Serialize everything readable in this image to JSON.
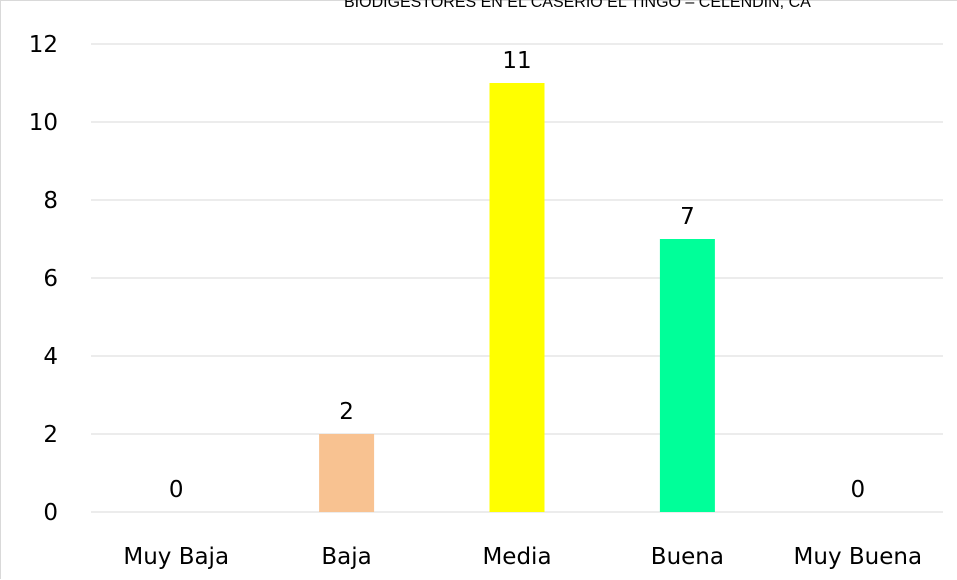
{
  "header": {
    "clipped_title": "BIODIGESTORES EN EL CASERÍO EL TINGO – CELENDÍN, CA"
  },
  "chart_data": {
    "type": "bar",
    "categories": [
      "Muy Baja",
      "Baja",
      "Media",
      "Buena",
      "Muy Buena"
    ],
    "values": [
      0,
      2,
      11,
      7,
      0
    ],
    "data_labels": [
      "0",
      "2",
      "11",
      "7",
      "0"
    ],
    "colors": [
      "#4472c4",
      "#f8c291",
      "#ffff00",
      "#00ff99",
      "#4472c4"
    ],
    "gridline_color": "#d9d9d9",
    "ylim": [
      0,
      12
    ],
    "yticks": [
      0,
      2,
      4,
      6,
      8,
      10,
      12
    ],
    "ytick_labels": [
      "0",
      "2",
      "4",
      "6",
      "8",
      "10",
      "12"
    ],
    "grid": true,
    "title": "",
    "xlabel": "",
    "ylabel": ""
  }
}
